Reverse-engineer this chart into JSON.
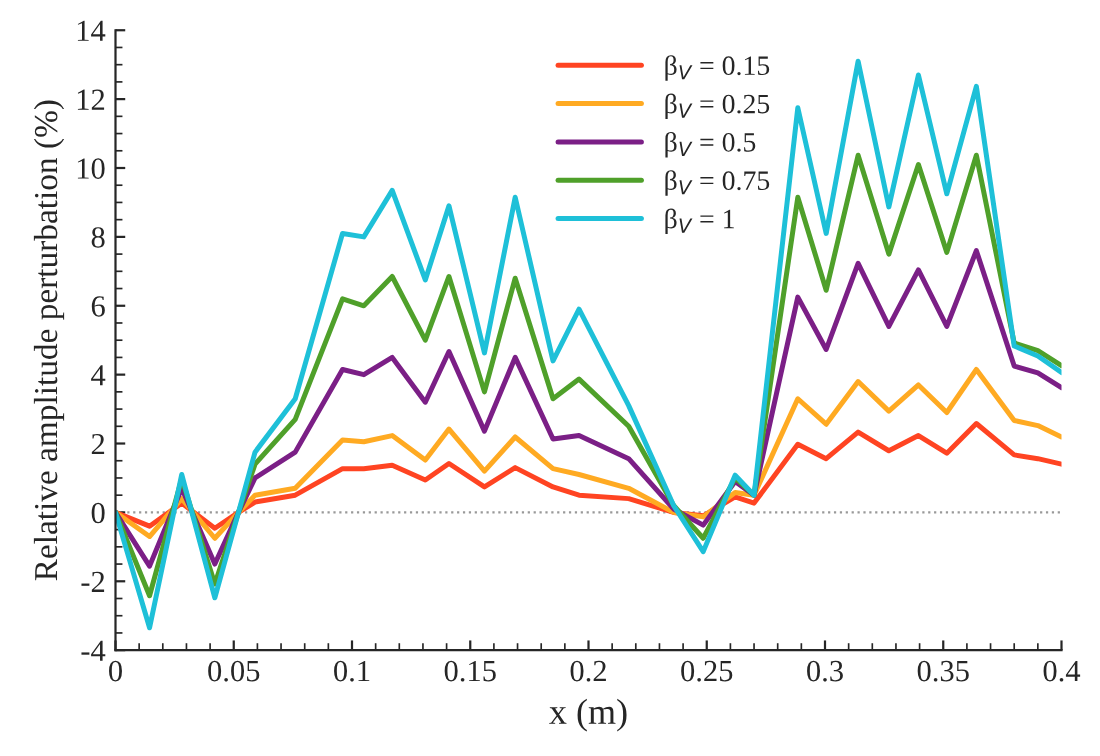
{
  "chart_data": {
    "type": "line",
    "xlabel": "x (m)",
    "ylabel": "Relative amplitude perturbation (%)",
    "x": [
      0,
      0.0144,
      0.028,
      0.042,
      0.052,
      0.059,
      0.076,
      0.096,
      0.105,
      0.117,
      0.131,
      0.141,
      0.156,
      0.169,
      0.185,
      0.196,
      0.217,
      0.236,
      0.2485,
      0.262,
      0.27,
      0.2885,
      0.3005,
      0.314,
      0.327,
      0.3395,
      0.3515,
      0.364,
      0.38,
      0.39,
      0.4
    ],
    "series": [
      {
        "name": "β$_{V}$ = 0.15",
        "color": "#ff4422",
        "values": [
          0,
          -0.4,
          0.27,
          -0.46,
          0,
          0.3,
          0.5,
          1.27,
          1.27,
          1.37,
          0.94,
          1.42,
          0.74,
          1.3,
          0.74,
          0.5,
          0.4,
          0,
          -0.1,
          0.45,
          0.27,
          1.98,
          1.56,
          2.33,
          1.79,
          2.23,
          1.72,
          2.58,
          1.67,
          1.56,
          1.4
        ]
      },
      {
        "name": "β$_{V}$ = 0.25",
        "color": "#ffaa22",
        "values": [
          0,
          -0.7,
          0.4,
          -0.75,
          0,
          0.5,
          0.7,
          2.1,
          2.05,
          2.23,
          1.52,
          2.42,
          1.2,
          2.19,
          1.27,
          1.1,
          0.7,
          0,
          -0.13,
          0.58,
          0.5,
          3.3,
          2.56,
          3.8,
          2.94,
          3.7,
          2.9,
          4.15,
          2.67,
          2.52,
          2.19
        ]
      },
      {
        "name": "β$_{V}$ = 0.5",
        "color": "#7b1f86",
        "values": [
          0,
          -1.56,
          0.7,
          -1.5,
          0,
          1.0,
          1.75,
          4.15,
          4.0,
          4.5,
          3.2,
          4.67,
          2.36,
          4.5,
          2.13,
          2.23,
          1.56,
          0.1,
          -0.37,
          0.9,
          0.5,
          6.25,
          4.73,
          7.23,
          5.4,
          7.04,
          5.4,
          7.6,
          4.25,
          4.05,
          3.62
        ]
      },
      {
        "name": "β$_{V}$ = 0.75",
        "color": "#4fa02a",
        "values": [
          0,
          -2.42,
          0.98,
          -2.08,
          0,
          1.4,
          2.7,
          6.2,
          6.0,
          6.85,
          5.0,
          6.85,
          3.5,
          6.8,
          3.3,
          3.87,
          2.5,
          0.2,
          -0.75,
          1.0,
          0.5,
          9.15,
          6.45,
          10.37,
          7.5,
          10.1,
          7.55,
          10.37,
          4.92,
          4.7,
          4.26
        ]
      },
      {
        "name": "β$_{V}$ = 1",
        "color": "#1ec0d8",
        "values": [
          0,
          -3.35,
          1.1,
          -2.48,
          0,
          1.75,
          3.3,
          8.1,
          8.0,
          9.35,
          6.75,
          8.9,
          4.63,
          9.15,
          4.4,
          5.9,
          3.1,
          0.2,
          -1.14,
          1.08,
          0.5,
          11.75,
          8.1,
          13.1,
          8.87,
          12.7,
          9.25,
          12.37,
          4.83,
          4.54,
          4.06
        ]
      }
    ],
    "xlim": [
      0,
      0.4
    ],
    "xticks": [
      0,
      0.05,
      0.1,
      0.15,
      0.2,
      0.25,
      0.3,
      0.35,
      0.4
    ],
    "ylim": [
      -4,
      14
    ],
    "yticks": [
      -4,
      -2,
      0,
      2,
      4,
      6,
      8,
      10,
      12,
      14
    ],
    "ref_lines": [
      {
        "axis": "y",
        "value": 0,
        "color": "#999999",
        "line_style": "dotted"
      }
    ],
    "legend": "top",
    "grid": false,
    "marker": "none",
    "line_style": "solid"
  }
}
